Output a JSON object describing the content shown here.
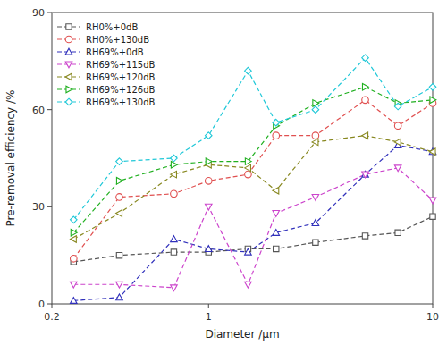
{
  "chart_data": {
    "type": "line",
    "xlabel": "Diameter /μm",
    "ylabel": "Pre-removal efficiency /%",
    "log": "x",
    "xlim": [
      0.2,
      10
    ],
    "xticks": [
      0.2,
      1,
      10
    ],
    "ylim": [
      0,
      90
    ],
    "yticks": [
      0,
      30,
      60,
      90
    ],
    "grid": false,
    "legend": "upper left",
    "x": [
      0.25,
      0.4,
      0.7,
      1.0,
      1.5,
      2.0,
      3.0,
      5.0,
      7.0,
      10.0
    ],
    "series": [
      {
        "name": "RH0%+0dB",
        "color": "#555555",
        "line_style": "dashed",
        "marker": "square",
        "values": [
          13,
          15,
          16,
          16,
          17,
          17,
          19,
          21,
          22,
          27
        ]
      },
      {
        "name": "RH0%+130dB",
        "color": "#e05050",
        "line_style": "dashed",
        "marker": "circle",
        "values": [
          14,
          33,
          34,
          38,
          40,
          52,
          52,
          63,
          55,
          62
        ]
      },
      {
        "name": "RH69%+0dB",
        "color": "#3030bb",
        "line_style": "dashed",
        "marker": "triangle-up",
        "values": [
          1,
          2,
          20,
          17,
          16,
          22,
          25,
          40,
          49,
          47
        ]
      },
      {
        "name": "RH69%+115dB",
        "color": "#cc44cc",
        "line_style": "dashed",
        "marker": "triangle-down",
        "values": [
          6,
          6,
          5,
          30,
          6,
          28,
          33,
          40,
          42,
          32
        ]
      },
      {
        "name": "RH69%+120dB",
        "color": "#888820",
        "line_style": "dashed",
        "marker": "triangle-left",
        "values": [
          20,
          28,
          40,
          43,
          42,
          35,
          50,
          52,
          50,
          47
        ]
      },
      {
        "name": "RH69%+126dB",
        "color": "#20b020",
        "line_style": "dashed",
        "marker": "triangle-right",
        "values": [
          22,
          38,
          43,
          44,
          44,
          55,
          62,
          67,
          62,
          63
        ]
      },
      {
        "name": "RH69%+130dB",
        "color": "#20c8d8",
        "line_style": "dashed",
        "marker": "diamond",
        "values": [
          26,
          44,
          45,
          52,
          72,
          56,
          60,
          76,
          61,
          67
        ]
      }
    ]
  }
}
